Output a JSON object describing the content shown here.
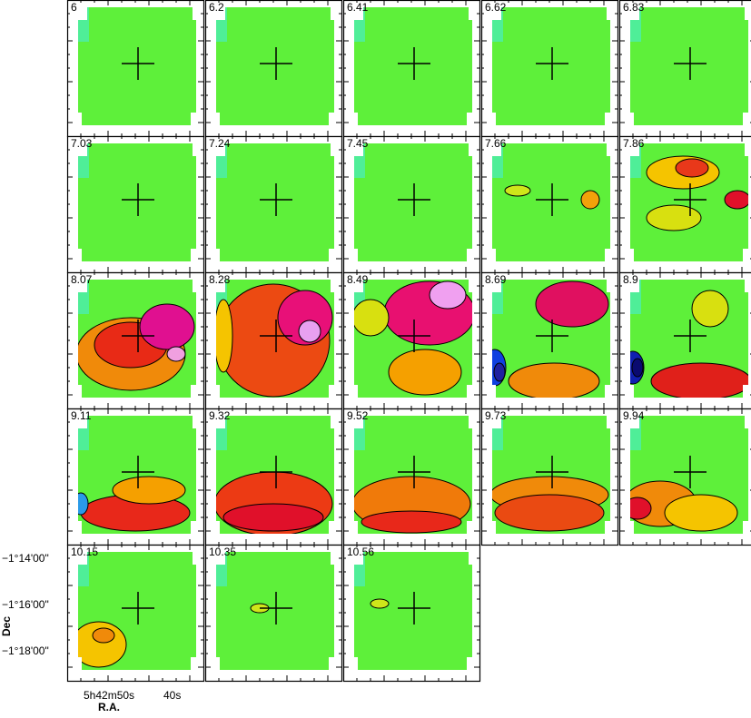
{
  "panels": [
    {
      "label": "6"
    },
    {
      "label": "6.2"
    },
    {
      "label": "6.41"
    },
    {
      "label": "6.62"
    },
    {
      "label": "6.83"
    },
    {
      "label": "7.03"
    },
    {
      "label": "7.24"
    },
    {
      "label": "7.45"
    },
    {
      "label": "7.66"
    },
    {
      "label": "7.86"
    },
    {
      "label": "8.07"
    },
    {
      "label": "8.28"
    },
    {
      "label": "8.49"
    },
    {
      "label": "8.69"
    },
    {
      "label": "8.9"
    },
    {
      "label": "9.11"
    },
    {
      "label": "9.32"
    },
    {
      "label": "9.52"
    },
    {
      "label": "9.73"
    },
    {
      "label": "9.94"
    },
    {
      "label": "10.15"
    },
    {
      "label": "10.35"
    },
    {
      "label": "10.56"
    }
  ],
  "axes": {
    "dec_ticks": [
      "−1°14'00\"",
      "−1°16'00\"",
      "−1°18'00\""
    ],
    "dec_label": "Dec",
    "ra_ticks": [
      "5h42m50s",
      "40s"
    ],
    "ra_label": "R.A."
  }
}
